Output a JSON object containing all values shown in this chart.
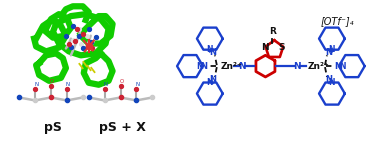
{
  "background_color": "#ffffff",
  "left_panel": {
    "label_pS": "pS",
    "label_pSX": "pS + X",
    "label_fontsize": 9,
    "label_fontweight": "bold"
  },
  "right_panel": {
    "otf_label": "[OTf⁻]₄",
    "blue_color": "#1a3fcc",
    "red_color": "#cc0000",
    "black_color": "#111111",
    "green_color": "#11cc00"
  }
}
